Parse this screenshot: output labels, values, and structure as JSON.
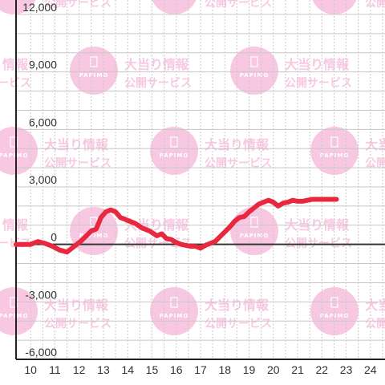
{
  "watermark": {
    "title": "大当り情報",
    "subtitle": "公開サービス",
    "logo": "PAPIMO",
    "color": "#f6b6d9"
  },
  "chart_data": {
    "type": "line",
    "title": "",
    "xlabel": "",
    "ylabel": "",
    "xlim": [
      9.4,
      24.6
    ],
    "ylim": [
      -6000,
      12000
    ],
    "yticks": [
      12000,
      9000,
      6000,
      3000,
      0,
      -3000,
      -6000
    ],
    "ytick_labels": [
      "12,000",
      "9,000",
      "6,000",
      "3,000",
      "0",
      "-3,000",
      "-6,000"
    ],
    "xticks": [
      10,
      11,
      12,
      13,
      14,
      15,
      16,
      17,
      18,
      19,
      20,
      21,
      22,
      23,
      24
    ],
    "xtick_labels": [
      "10",
      "11",
      "12",
      "13",
      "14",
      "15",
      "16",
      "17",
      "18",
      "19",
      "20",
      "21",
      "22",
      "23",
      "24"
    ],
    "grid": true,
    "line_color": "#e8283f",
    "series": [
      {
        "x": [
          9.4,
          10.0,
          10.3,
          10.6,
          10.9,
          11.2,
          11.5,
          11.8,
          12.1,
          12.3,
          12.5,
          12.7,
          12.9,
          13.1,
          13.3,
          13.5,
          13.7,
          13.9,
          14.1,
          14.3,
          14.6,
          14.9,
          15.2,
          15.4,
          15.6,
          15.8,
          16.0,
          16.2,
          16.4,
          16.6,
          16.8,
          17.0,
          17.2,
          17.4,
          17.6,
          17.8,
          18.0,
          18.2,
          18.4,
          18.6,
          18.8,
          19.0,
          19.2,
          19.4,
          19.6,
          19.8,
          20.0,
          20.2,
          20.4,
          20.6,
          20.8,
          21.0,
          21.2,
          21.4,
          21.6,
          21.8,
          22.0,
          22.2,
          22.4,
          22.6
        ],
        "values": [
          0,
          0,
          150,
          50,
          -100,
          -300,
          -400,
          -100,
          200,
          450,
          700,
          800,
          1400,
          1700,
          1800,
          1700,
          1400,
          1300,
          1200,
          1100,
          850,
          700,
          450,
          550,
          300,
          250,
          100,
          0,
          -50,
          -100,
          -100,
          -200,
          -50,
          50,
          150,
          400,
          650,
          900,
          1200,
          1400,
          1450,
          1700,
          1900,
          2100,
          2200,
          2300,
          2200,
          2000,
          2150,
          2200,
          2300,
          2250,
          2250,
          2300,
          2350,
          2350,
          2350,
          2350,
          2350,
          2350
        ]
      }
    ]
  }
}
